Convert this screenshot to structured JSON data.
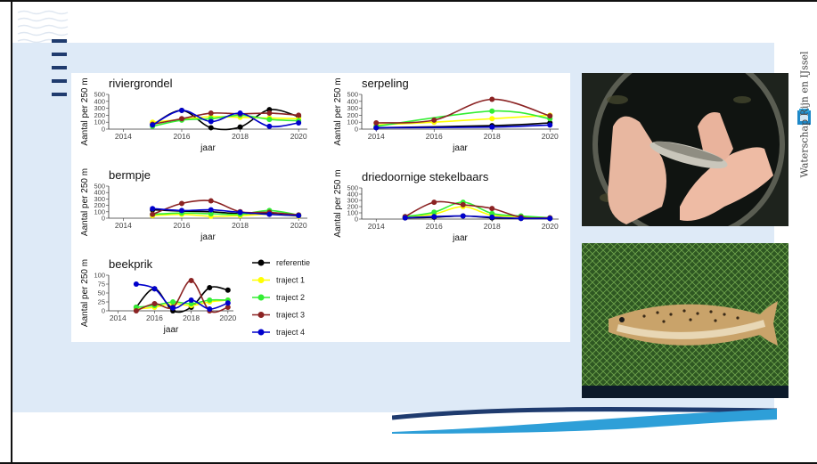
{
  "brand": {
    "name": "Waterschap Rijn en IJssel"
  },
  "legend": [
    {
      "name": "referentie",
      "color": "#000000"
    },
    {
      "name": "traject 1",
      "color": "#ffff00"
    },
    {
      "name": "traject 2",
      "color": "#33ee33"
    },
    {
      "name": "traject 3",
      "color": "#8b2323"
    },
    {
      "name": "traject 4",
      "color": "#0000cc"
    }
  ],
  "chart_data": [
    {
      "type": "line",
      "title": "riviergrondel",
      "xlabel": "jaar",
      "ylabel": "Aantal per 250 m",
      "xlim": [
        2013.5,
        2020.3
      ],
      "ylim": [
        0,
        500
      ],
      "xticks": [
        2014,
        2016,
        2018,
        2020
      ],
      "yticks": [
        0,
        100,
        200,
        300,
        400,
        500
      ],
      "series": [
        {
          "name": "referentie",
          "x": [
            2015,
            2016,
            2017,
            2018,
            2019,
            2020
          ],
          "y": [
            60,
            270,
            20,
            30,
            280,
            180
          ]
        },
        {
          "name": "traject 1",
          "x": [
            2015,
            2016,
            2017,
            2018,
            2019,
            2020
          ],
          "y": [
            100,
            140,
            180,
            170,
            160,
            150
          ]
        },
        {
          "name": "traject 2",
          "x": [
            2015,
            2016,
            2017,
            2018,
            2019,
            2020
          ],
          "y": [
            40,
            130,
            150,
            200,
            140,
            120
          ]
        },
        {
          "name": "traject 3",
          "x": [
            2015,
            2016,
            2017,
            2018,
            2019,
            2020
          ],
          "y": [
            70,
            150,
            230,
            220,
            230,
            200
          ]
        },
        {
          "name": "traject 4",
          "x": [
            2015,
            2016,
            2017,
            2018,
            2019,
            2020
          ],
          "y": [
            60,
            270,
            110,
            230,
            40,
            90
          ]
        }
      ]
    },
    {
      "type": "line",
      "title": "serpeling",
      "xlabel": "jaar",
      "ylabel": "Aantal per 250 m",
      "xlim": [
        2013.5,
        2020.3
      ],
      "ylim": [
        0,
        500
      ],
      "xticks": [
        2014,
        2016,
        2018,
        2020
      ],
      "yticks": [
        0,
        100,
        200,
        300,
        400,
        500
      ],
      "series": [
        {
          "name": "referentie",
          "x": [
            2014,
            2018,
            2020
          ],
          "y": [
            20,
            50,
            90
          ]
        },
        {
          "name": "traject 1",
          "x": [
            2014,
            2016,
            2018,
            2020
          ],
          "y": [
            60,
            100,
            150,
            200
          ]
        },
        {
          "name": "traject 2",
          "x": [
            2014,
            2018,
            2020
          ],
          "y": [
            40,
            260,
            150
          ]
        },
        {
          "name": "traject 3",
          "x": [
            2014,
            2016,
            2018,
            2020
          ],
          "y": [
            90,
            130,
            430,
            190
          ]
        },
        {
          "name": "traject 4",
          "x": [
            2014,
            2018,
            2020
          ],
          "y": [
            20,
            30,
            60
          ]
        }
      ]
    },
    {
      "type": "line",
      "title": "bermpje",
      "xlabel": "jaar",
      "ylabel": "Aantal per 250 m",
      "xlim": [
        2013.5,
        2020.3
      ],
      "ylim": [
        0,
        500
      ],
      "xticks": [
        2014,
        2016,
        2018,
        2020
      ],
      "yticks": [
        0,
        100,
        200,
        300,
        400,
        500
      ],
      "series": [
        {
          "name": "referentie",
          "x": [
            2015,
            2016,
            2017,
            2018,
            2019,
            2020
          ],
          "y": [
            130,
            110,
            100,
            70,
            80,
            40
          ]
        },
        {
          "name": "traject 1",
          "x": [
            2015,
            2016,
            2017,
            2018,
            2019,
            2020
          ],
          "y": [
            40,
            60,
            30,
            40,
            60,
            30
          ]
        },
        {
          "name": "traject 2",
          "x": [
            2015,
            2016,
            2017,
            2018,
            2019,
            2020
          ],
          "y": [
            60,
            80,
            70,
            60,
            120,
            50
          ]
        },
        {
          "name": "traject 3",
          "x": [
            2015,
            2016,
            2017,
            2018,
            2019,
            2020
          ],
          "y": [
            60,
            230,
            270,
            100,
            90,
            50
          ]
        },
        {
          "name": "traject 4",
          "x": [
            2015,
            2016,
            2017,
            2018,
            2019,
            2020
          ],
          "y": [
            150,
            120,
            130,
            90,
            60,
            40
          ]
        }
      ]
    },
    {
      "type": "line",
      "title": "driedoornige stekelbaars",
      "xlabel": "jaar",
      "ylabel": "Aantal per 250 m",
      "xlim": [
        2013.5,
        2020.3
      ],
      "ylim": [
        0,
        500
      ],
      "xticks": [
        2014,
        2016,
        2018,
        2020
      ],
      "yticks": [
        0,
        100,
        200,
        300,
        400,
        500
      ],
      "series": [
        {
          "name": "referentie",
          "x": [
            2015,
            2016,
            2017,
            2018,
            2019,
            2020
          ],
          "y": [
            20,
            30,
            50,
            20,
            10,
            10
          ]
        },
        {
          "name": "traject 1",
          "x": [
            2015,
            2016,
            2017,
            2018,
            2019,
            2020
          ],
          "y": [
            30,
            80,
            200,
            60,
            40,
            20
          ]
        },
        {
          "name": "traject 2",
          "x": [
            2015,
            2016,
            2017,
            2018,
            2019,
            2020
          ],
          "y": [
            40,
            110,
            270,
            90,
            50,
            20
          ]
        },
        {
          "name": "traject 3",
          "x": [
            2015,
            2016,
            2017,
            2018,
            2019,
            2020
          ],
          "y": [
            40,
            270,
            230,
            170,
            30,
            20
          ]
        },
        {
          "name": "traject 4",
          "x": [
            2015,
            2016,
            2017,
            2018,
            2019,
            2020
          ],
          "y": [
            20,
            40,
            50,
            30,
            10,
            10
          ]
        }
      ]
    },
    {
      "type": "line",
      "title": "beekprik",
      "xlabel": "jaar",
      "ylabel": "Aantal per 250 m",
      "xlim": [
        2013.5,
        2020.3
      ],
      "ylim": [
        0,
        100
      ],
      "xticks": [
        2014,
        2016,
        2018,
        2020
      ],
      "yticks": [
        0,
        25,
        50,
        75,
        100
      ],
      "series": [
        {
          "name": "referentie",
          "x": [
            2015,
            2016,
            2017,
            2018,
            2019,
            2020
          ],
          "y": [
            10,
            62,
            0,
            10,
            65,
            58
          ]
        },
        {
          "name": "traject 1",
          "x": [
            2015,
            2016,
            2017,
            2018,
            2019,
            2020
          ],
          "y": [
            5,
            10,
            20,
            15,
            25,
            30
          ]
        },
        {
          "name": "traject 2",
          "x": [
            2015,
            2016,
            2017,
            2018,
            2019,
            2020
          ],
          "y": [
            10,
            15,
            25,
            20,
            30,
            30
          ]
        },
        {
          "name": "traject 3",
          "x": [
            2015,
            2016,
            2017,
            2018,
            2019,
            2020
          ],
          "y": [
            0,
            20,
            10,
            85,
            0,
            10
          ]
        },
        {
          "name": "traject 4",
          "x": [
            2015,
            2016,
            2017,
            2018,
            2019,
            2020
          ],
          "y": [
            75,
            62,
            8,
            30,
            5,
            22
          ]
        }
      ]
    }
  ]
}
